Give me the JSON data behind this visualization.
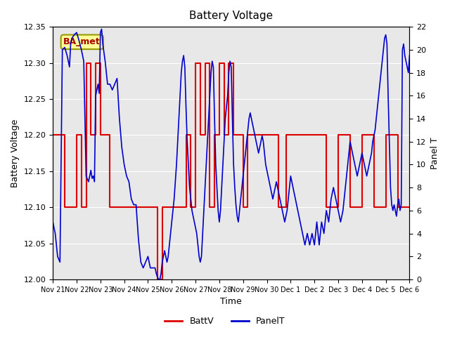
{
  "title": "Battery Voltage",
  "xlabel": "Time",
  "ylabel_left": "Battery Voltage",
  "ylabel_right": "Panel T",
  "ylim_left": [
    12.0,
    12.35
  ],
  "ylim_right": [
    0,
    22
  ],
  "background_color": "#ffffff",
  "plot_bg_color": "#e8e8e8",
  "legend_box_label": "BA_met",
  "legend_box_color": "#ffff99",
  "legend_box_border": "#999900",
  "legend_box_text_color": "#aa0000",
  "batt_color": "#dd0000",
  "panel_color": "#0000cc",
  "x_tick_labels": [
    "Nov 21",
    "Nov 22",
    "Nov 23",
    "Nov 24",
    "Nov 25",
    "Nov 26",
    "Nov 27",
    "Nov 28",
    "Nov 29",
    "Nov 30",
    "Dec 1",
    "Dec 2",
    "Dec 3",
    "Dec 4",
    "Dec 5",
    "Dec 6"
  ],
  "batt_data": [
    [
      0,
      12.2
    ],
    [
      0.5,
      12.2
    ],
    [
      0.5,
      12.1
    ],
    [
      1.0,
      12.1
    ],
    [
      1.0,
      12.2
    ],
    [
      1.2,
      12.2
    ],
    [
      1.2,
      12.1
    ],
    [
      1.4,
      12.1
    ],
    [
      1.4,
      12.3
    ],
    [
      1.6,
      12.3
    ],
    [
      1.6,
      12.2
    ],
    [
      1.8,
      12.2
    ],
    [
      1.8,
      12.3
    ],
    [
      2.0,
      12.3
    ],
    [
      2.0,
      12.2
    ],
    [
      2.2,
      12.2
    ],
    [
      2.2,
      12.2
    ],
    [
      2.4,
      12.2
    ],
    [
      2.4,
      12.1
    ],
    [
      3.0,
      12.1
    ],
    [
      3.0,
      12.1
    ],
    [
      3.5,
      12.1
    ],
    [
      3.5,
      12.1
    ],
    [
      4.0,
      12.1
    ],
    [
      4.0,
      12.1
    ],
    [
      4.4,
      12.1
    ],
    [
      4.4,
      12.0
    ],
    [
      4.6,
      12.0
    ],
    [
      4.6,
      12.1
    ],
    [
      4.8,
      12.1
    ],
    [
      4.8,
      12.1
    ],
    [
      5.0,
      12.1
    ],
    [
      5.0,
      12.1
    ],
    [
      5.2,
      12.1
    ],
    [
      5.2,
      12.1
    ],
    [
      5.6,
      12.1
    ],
    [
      5.6,
      12.2
    ],
    [
      5.8,
      12.2
    ],
    [
      5.8,
      12.1
    ],
    [
      6.0,
      12.1
    ],
    [
      6.0,
      12.3
    ],
    [
      6.2,
      12.3
    ],
    [
      6.2,
      12.2
    ],
    [
      6.4,
      12.2
    ],
    [
      6.4,
      12.3
    ],
    [
      6.6,
      12.3
    ],
    [
      6.6,
      12.1
    ],
    [
      6.8,
      12.1
    ],
    [
      6.8,
      12.2
    ],
    [
      7.0,
      12.2
    ],
    [
      7.0,
      12.3
    ],
    [
      7.2,
      12.3
    ],
    [
      7.2,
      12.2
    ],
    [
      7.4,
      12.2
    ],
    [
      7.4,
      12.3
    ],
    [
      7.6,
      12.3
    ],
    [
      7.6,
      12.2
    ],
    [
      7.8,
      12.2
    ],
    [
      7.8,
      12.2
    ],
    [
      8.0,
      12.2
    ],
    [
      8.0,
      12.1
    ],
    [
      8.2,
      12.1
    ],
    [
      8.2,
      12.2
    ],
    [
      8.4,
      12.2
    ],
    [
      8.4,
      12.2
    ],
    [
      8.6,
      12.2
    ],
    [
      8.6,
      12.2
    ],
    [
      8.8,
      12.2
    ],
    [
      8.8,
      12.2
    ],
    [
      9.0,
      12.2
    ],
    [
      9.0,
      12.2
    ],
    [
      9.2,
      12.2
    ],
    [
      9.2,
      12.2
    ],
    [
      9.5,
      12.2
    ],
    [
      9.5,
      12.1
    ],
    [
      9.8,
      12.1
    ],
    [
      9.8,
      12.2
    ],
    [
      10.0,
      12.2
    ],
    [
      10.0,
      12.2
    ],
    [
      10.5,
      12.2
    ],
    [
      10.5,
      12.2
    ],
    [
      11.0,
      12.2
    ],
    [
      11.0,
      12.2
    ],
    [
      11.5,
      12.2
    ],
    [
      11.5,
      12.1
    ],
    [
      12.0,
      12.1
    ],
    [
      12.0,
      12.2
    ],
    [
      12.5,
      12.2
    ],
    [
      12.5,
      12.1
    ],
    [
      13.0,
      12.1
    ],
    [
      13.0,
      12.2
    ],
    [
      13.5,
      12.2
    ],
    [
      13.5,
      12.1
    ],
    [
      14.0,
      12.1
    ],
    [
      14.0,
      12.2
    ],
    [
      14.5,
      12.2
    ],
    [
      14.5,
      12.1
    ],
    [
      15.0,
      12.1
    ]
  ],
  "panel_data": [
    [
      0,
      5
    ],
    [
      0.1,
      4
    ],
    [
      0.2,
      2
    ],
    [
      0.3,
      1.5
    ],
    [
      0.4,
      20
    ],
    [
      0.5,
      20.2
    ],
    [
      0.6,
      19.5
    ],
    [
      0.7,
      18.5
    ],
    [
      0.75,
      20.5
    ],
    [
      0.8,
      21
    ],
    [
      0.9,
      21.3
    ],
    [
      1.0,
      21.5
    ],
    [
      1.1,
      20.8
    ],
    [
      1.2,
      20
    ],
    [
      1.3,
      19
    ],
    [
      1.35,
      14
    ],
    [
      1.4,
      9
    ],
    [
      1.5,
      8.5
    ],
    [
      1.6,
      9.5
    ],
    [
      1.65,
      8.8
    ],
    [
      1.7,
      9
    ],
    [
      1.75,
      8.5
    ],
    [
      1.8,
      16
    ],
    [
      1.85,
      16.5
    ],
    [
      1.9,
      17
    ],
    [
      1.95,
      16.2
    ],
    [
      2.0,
      21.5
    ],
    [
      2.05,
      21.8
    ],
    [
      2.1,
      20.5
    ],
    [
      2.2,
      19
    ],
    [
      2.3,
      17
    ],
    [
      2.4,
      17
    ],
    [
      2.5,
      16.5
    ],
    [
      2.6,
      17
    ],
    [
      2.7,
      17.5
    ],
    [
      2.8,
      14
    ],
    [
      2.9,
      11.5
    ],
    [
      3.0,
      10
    ],
    [
      3.1,
      9
    ],
    [
      3.2,
      8.5
    ],
    [
      3.3,
      7
    ],
    [
      3.4,
      6.5
    ],
    [
      3.5,
      6.5
    ],
    [
      3.55,
      5
    ],
    [
      3.6,
      3.5
    ],
    [
      3.7,
      1.5
    ],
    [
      3.8,
      1
    ],
    [
      3.9,
      1.5
    ],
    [
      4.0,
      2
    ],
    [
      4.05,
      1.5
    ],
    [
      4.1,
      1
    ],
    [
      4.2,
      1
    ],
    [
      4.3,
      1
    ],
    [
      4.35,
      0.5
    ],
    [
      4.4,
      0.2
    ],
    [
      4.45,
      0
    ],
    [
      4.5,
      0
    ],
    [
      4.55,
      0.5
    ],
    [
      4.6,
      1.5
    ],
    [
      4.65,
      2
    ],
    [
      4.7,
      2.5
    ],
    [
      4.75,
      2
    ],
    [
      4.8,
      1.5
    ],
    [
      4.85,
      2
    ],
    [
      4.9,
      3
    ],
    [
      4.95,
      4
    ],
    [
      5.0,
      5
    ],
    [
      5.05,
      6
    ],
    [
      5.1,
      7
    ],
    [
      5.15,
      8.5
    ],
    [
      5.2,
      10
    ],
    [
      5.25,
      12
    ],
    [
      5.3,
      14
    ],
    [
      5.35,
      16
    ],
    [
      5.4,
      18
    ],
    [
      5.45,
      19
    ],
    [
      5.5,
      19.5
    ],
    [
      5.55,
      18.5
    ],
    [
      5.6,
      15
    ],
    [
      5.65,
      12
    ],
    [
      5.7,
      10
    ],
    [
      5.75,
      8
    ],
    [
      5.8,
      7
    ],
    [
      5.85,
      6
    ],
    [
      5.9,
      5.5
    ],
    [
      5.95,
      5
    ],
    [
      6.0,
      4.5
    ],
    [
      6.05,
      4
    ],
    [
      6.1,
      3
    ],
    [
      6.15,
      2
    ],
    [
      6.2,
      1.5
    ],
    [
      6.25,
      2
    ],
    [
      6.3,
      4
    ],
    [
      6.35,
      6
    ],
    [
      6.4,
      8
    ],
    [
      6.45,
      10
    ],
    [
      6.5,
      12
    ],
    [
      6.55,
      14
    ],
    [
      6.6,
      16
    ],
    [
      6.65,
      18
    ],
    [
      6.7,
      19
    ],
    [
      6.75,
      18.5
    ],
    [
      6.8,
      14
    ],
    [
      6.85,
      10
    ],
    [
      6.9,
      8
    ],
    [
      6.95,
      6
    ],
    [
      7.0,
      5
    ],
    [
      7.05,
      6
    ],
    [
      7.1,
      8
    ],
    [
      7.15,
      10
    ],
    [
      7.2,
      12
    ],
    [
      7.25,
      14
    ],
    [
      7.3,
      15
    ],
    [
      7.35,
      16
    ],
    [
      7.4,
      18
    ],
    [
      7.45,
      19
    ],
    [
      7.5,
      18.5
    ],
    [
      7.55,
      14
    ],
    [
      7.6,
      10
    ],
    [
      7.65,
      8
    ],
    [
      7.7,
      6.5
    ],
    [
      7.75,
      5.5
    ],
    [
      7.8,
      5
    ],
    [
      7.85,
      6
    ],
    [
      7.9,
      7
    ],
    [
      7.95,
      8
    ],
    [
      8.0,
      9
    ],
    [
      8.05,
      10
    ],
    [
      8.1,
      11
    ],
    [
      8.15,
      12
    ],
    [
      8.2,
      13
    ],
    [
      8.25,
      14
    ],
    [
      8.3,
      14.5
    ],
    [
      8.35,
      14
    ],
    [
      8.4,
      13.5
    ],
    [
      8.45,
      13
    ],
    [
      8.5,
      12.5
    ],
    [
      8.55,
      12
    ],
    [
      8.6,
      11.5
    ],
    [
      8.65,
      11
    ],
    [
      8.7,
      11.5
    ],
    [
      8.75,
      12
    ],
    [
      8.8,
      12.5
    ],
    [
      8.85,
      12
    ],
    [
      8.9,
      11
    ],
    [
      8.95,
      10
    ],
    [
      9.0,
      9.5
    ],
    [
      9.05,
      9
    ],
    [
      9.1,
      8.5
    ],
    [
      9.15,
      8
    ],
    [
      9.2,
      7.5
    ],
    [
      9.25,
      7
    ],
    [
      9.3,
      7.5
    ],
    [
      9.35,
      8
    ],
    [
      9.4,
      8.5
    ],
    [
      9.45,
      8
    ],
    [
      9.5,
      7.5
    ],
    [
      9.55,
      7
    ],
    [
      9.6,
      6.5
    ],
    [
      9.65,
      6
    ],
    [
      9.7,
      5.5
    ],
    [
      9.75,
      5
    ],
    [
      9.8,
      5.5
    ],
    [
      9.85,
      6
    ],
    [
      9.9,
      7
    ],
    [
      9.95,
      8
    ],
    [
      10.0,
      9
    ],
    [
      10.05,
      8.5
    ],
    [
      10.1,
      8
    ],
    [
      10.15,
      7.5
    ],
    [
      10.2,
      7
    ],
    [
      10.25,
      6.5
    ],
    [
      10.3,
      6
    ],
    [
      10.35,
      5.5
    ],
    [
      10.4,
      5
    ],
    [
      10.45,
      4.5
    ],
    [
      10.5,
      4
    ],
    [
      10.55,
      3.5
    ],
    [
      10.6,
      3
    ],
    [
      10.65,
      3.5
    ],
    [
      10.7,
      4
    ],
    [
      10.75,
      3.5
    ],
    [
      10.8,
      3
    ],
    [
      10.85,
      3.5
    ],
    [
      10.9,
      4
    ],
    [
      10.95,
      3.5
    ],
    [
      11.0,
      3
    ],
    [
      11.05,
      4
    ],
    [
      11.1,
      5
    ],
    [
      11.15,
      4
    ],
    [
      11.2,
      3
    ],
    [
      11.25,
      4
    ],
    [
      11.3,
      5
    ],
    [
      11.35,
      4.5
    ],
    [
      11.4,
      4
    ],
    [
      11.45,
      5
    ],
    [
      11.5,
      6
    ],
    [
      11.55,
      5.5
    ],
    [
      11.6,
      5
    ],
    [
      11.65,
      6
    ],
    [
      11.7,
      7
    ],
    [
      11.75,
      7.5
    ],
    [
      11.8,
      8
    ],
    [
      11.85,
      7.5
    ],
    [
      11.9,
      7
    ],
    [
      11.95,
      6.5
    ],
    [
      12.0,
      6
    ],
    [
      12.05,
      5.5
    ],
    [
      12.1,
      5
    ],
    [
      12.15,
      5.5
    ],
    [
      12.2,
      6
    ],
    [
      12.25,
      7
    ],
    [
      12.3,
      8
    ],
    [
      12.35,
      9
    ],
    [
      12.4,
      10
    ],
    [
      12.45,
      11
    ],
    [
      12.5,
      12
    ],
    [
      12.55,
      11.5
    ],
    [
      12.6,
      11
    ],
    [
      12.65,
      10.5
    ],
    [
      12.7,
      10
    ],
    [
      12.75,
      9.5
    ],
    [
      12.8,
      9
    ],
    [
      12.85,
      9.5
    ],
    [
      12.9,
      10
    ],
    [
      12.95,
      10.5
    ],
    [
      13.0,
      11
    ],
    [
      13.05,
      10.5
    ],
    [
      13.1,
      10
    ],
    [
      13.15,
      9.5
    ],
    [
      13.2,
      9
    ],
    [
      13.25,
      9.5
    ],
    [
      13.3,
      10
    ],
    [
      13.35,
      10.5
    ],
    [
      13.4,
      11
    ],
    [
      13.45,
      12
    ],
    [
      13.5,
      12.5
    ],
    [
      13.55,
      13
    ],
    [
      13.6,
      14
    ],
    [
      13.65,
      15
    ],
    [
      13.7,
      16
    ],
    [
      13.75,
      17
    ],
    [
      13.8,
      18
    ],
    [
      13.85,
      19
    ],
    [
      13.9,
      20
    ],
    [
      13.95,
      21
    ],
    [
      14.0,
      21.3
    ],
    [
      14.05,
      20.5
    ],
    [
      14.1,
      16
    ],
    [
      14.15,
      12
    ],
    [
      14.2,
      8
    ],
    [
      14.25,
      6.5
    ],
    [
      14.3,
      6
    ],
    [
      14.35,
      6.5
    ],
    [
      14.4,
      6
    ],
    [
      14.45,
      5.5
    ],
    [
      14.5,
      6.5
    ],
    [
      14.55,
      7
    ],
    [
      14.6,
      6
    ],
    [
      14.65,
      6.5
    ],
    [
      14.7,
      20
    ],
    [
      14.75,
      20.5
    ],
    [
      14.8,
      19.5
    ],
    [
      14.85,
      19
    ],
    [
      14.9,
      18.5
    ],
    [
      14.95,
      18
    ],
    [
      15.0,
      19.5
    ]
  ],
  "x_tick_positions": [
    0,
    1,
    2,
    3,
    4,
    5,
    6,
    7,
    8,
    9,
    10,
    11,
    12,
    13,
    14,
    15
  ],
  "right_yticks": [
    0,
    2,
    4,
    6,
    8,
    10,
    12,
    14,
    16,
    18,
    20,
    22
  ],
  "left_yticks": [
    12.0,
    12.05,
    12.1,
    12.15,
    12.2,
    12.25,
    12.3,
    12.35
  ]
}
